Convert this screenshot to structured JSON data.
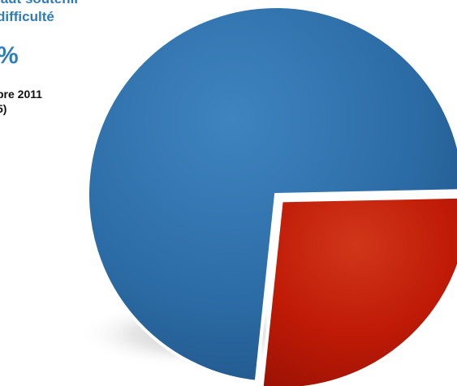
{
  "header": {
    "title_line1": "iaut soutenir",
    "title_line2": "difficulté",
    "value": "%",
    "date_line": "bre 2011",
    "base_line": "5)"
  },
  "chart_data": {
    "type": "pie",
    "start_angle_deg": 96,
    "slices": [
      {
        "share": 0.73,
        "color": "#2a6aa4",
        "exploded": false
      },
      {
        "share": 0.27,
        "color": "#c41a06",
        "exploded": true
      }
    ]
  },
  "colors": {
    "title_blue": "#2f7db7",
    "slice_blue": "#2a6aa4",
    "slice_red": "#c41a06",
    "text_dark": "#111111"
  }
}
